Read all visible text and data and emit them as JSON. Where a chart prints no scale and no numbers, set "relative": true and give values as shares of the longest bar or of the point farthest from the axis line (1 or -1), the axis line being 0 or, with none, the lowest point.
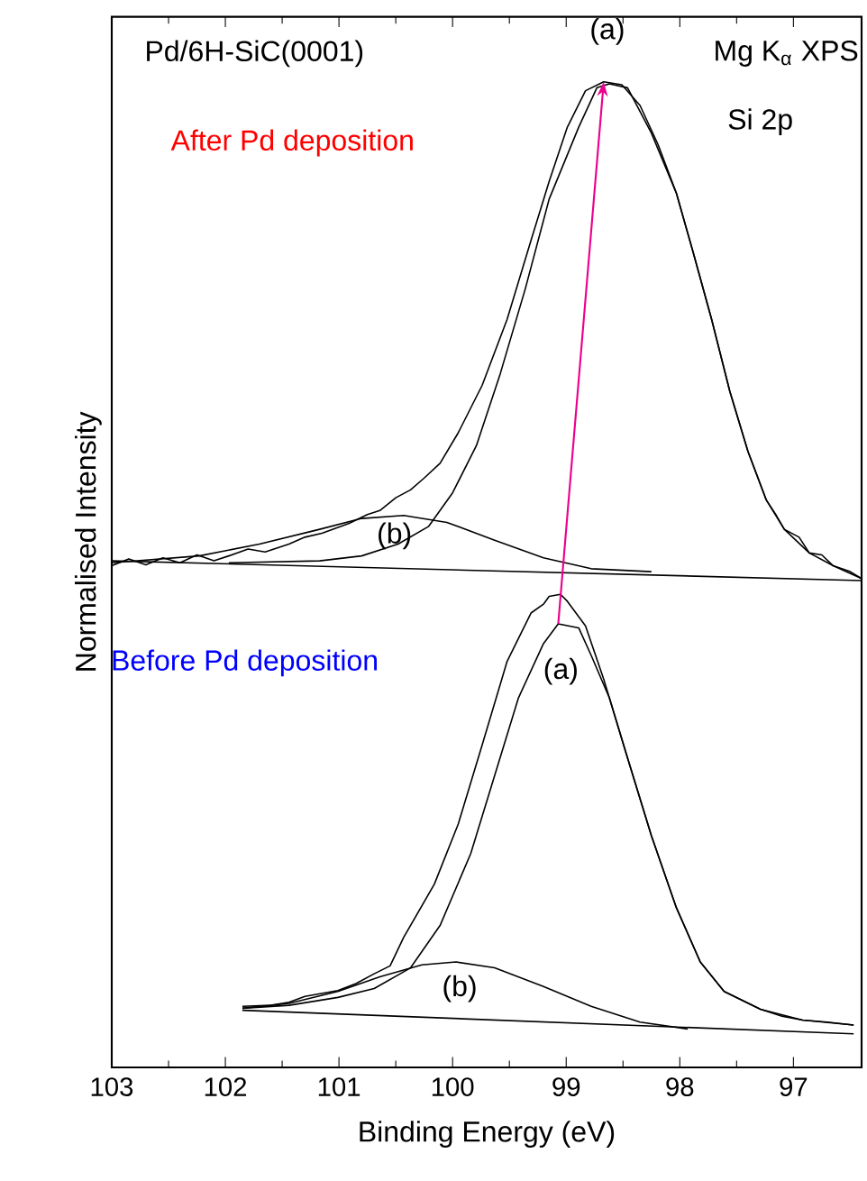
{
  "chart_data": {
    "type": "line",
    "relative": true,
    "xlabel": "Binding Energy (eV)",
    "ylabel": "Normalised Intensity",
    "xlim": [
      103,
      96.4
    ],
    "xticks": [
      103,
      102,
      101,
      100,
      99,
      98,
      97
    ],
    "annotations": [
      "Pd/6H-SiC(0001)",
      "Mg K$_{α}$ XPS",
      "Si 2p",
      "After Pd deposition",
      "Before Pd deposition",
      "(a)",
      "(b)",
      "(a)",
      "(b)"
    ],
    "series": [
      {
        "color": "#000000",
        "x": [
          103.0,
          102.85,
          102.7,
          102.55,
          102.4,
          102.25,
          102.1,
          101.97,
          101.8,
          101.65,
          101.44,
          101.3,
          101.15,
          100.91,
          100.75,
          100.64,
          100.5,
          100.37,
          100.25,
          100.11,
          99.95,
          99.74,
          99.52,
          99.31,
          99.15,
          98.99,
          98.83,
          98.67,
          98.51,
          98.35,
          98.19,
          98.03,
          97.88,
          97.72,
          97.56,
          97.4,
          97.24,
          97.15,
          97.08,
          96.95,
          96.86,
          96.75,
          96.65,
          96.5,
          96.4
        ],
        "values": [
          0.509,
          0.516,
          0.51,
          0.517,
          0.512,
          0.52,
          0.514,
          0.519,
          0.526,
          0.523,
          0.531,
          0.538,
          0.542,
          0.552,
          0.561,
          0.565,
          0.578,
          0.586,
          0.598,
          0.613,
          0.644,
          0.692,
          0.759,
          0.839,
          0.899,
          0.954,
          0.991,
          1.0,
          0.997,
          0.976,
          0.936,
          0.887,
          0.826,
          0.759,
          0.686,
          0.625,
          0.576,
          0.56,
          0.546,
          0.538,
          0.522,
          0.52,
          0.509,
          0.503,
          0.496
        ]
      },
      {
        "color": "#000000",
        "x": [
          101.97,
          101.17,
          100.8,
          100.48,
          100.21,
          100.0,
          99.79,
          99.58,
          99.36,
          99.15,
          98.89,
          98.73,
          98.62,
          98.46,
          98.25,
          98.03,
          97.88,
          97.72,
          97.56,
          97.4,
          97.24,
          97.08,
          96.86,
          96.65,
          96.4
        ],
        "values": [
          0.512,
          0.514,
          0.519,
          0.531,
          0.549,
          0.583,
          0.631,
          0.704,
          0.79,
          0.881,
          0.954,
          0.994,
          0.998,
          0.994,
          0.948,
          0.887,
          0.826,
          0.759,
          0.686,
          0.625,
          0.576,
          0.546,
          0.522,
          0.509,
          0.496
        ]
      },
      {
        "color": "#000000",
        "x": [
          103.0,
          102.23,
          101.7,
          101.17,
          100.8,
          100.43,
          100.05,
          99.63,
          99.2,
          98.78,
          98.25
        ],
        "values": [
          0.512,
          0.519,
          0.531,
          0.546,
          0.557,
          0.56,
          0.553,
          0.535,
          0.517,
          0.506,
          0.503
        ]
      },
      {
        "color": "#000000",
        "x": [
          103.0,
          96.4
        ],
        "values": [
          0.514,
          0.494
        ]
      },
      {
        "color": "#000000",
        "x": [
          101.85,
          101.6,
          101.44,
          101.3,
          101.01,
          100.85,
          100.69,
          100.55,
          100.43,
          100.16,
          99.95,
          99.74,
          99.52,
          99.31,
          99.2,
          99.15,
          99.05,
          98.99,
          98.83,
          98.67,
          98.46,
          98.25,
          98.03,
          97.82,
          97.61,
          97.29,
          97.1,
          96.92,
          96.7,
          96.47
        ],
        "values": [
          0.062,
          0.063,
          0.066,
          0.072,
          0.078,
          0.085,
          0.095,
          0.103,
          0.132,
          0.186,
          0.247,
          0.327,
          0.412,
          0.461,
          0.47,
          0.478,
          0.48,
          0.473,
          0.448,
          0.394,
          0.314,
          0.235,
          0.162,
          0.107,
          0.077,
          0.059,
          0.052,
          0.048,
          0.046,
          0.043
        ]
      },
      {
        "color": "#000000",
        "x": [
          101.85,
          101.44,
          101.01,
          100.69,
          100.37,
          100.11,
          99.84,
          99.63,
          99.42,
          99.2,
          99.07,
          98.89,
          98.78,
          98.62,
          98.46,
          98.25,
          98.03,
          97.82,
          97.61,
          97.29,
          96.92,
          96.47
        ],
        "values": [
          0.06,
          0.063,
          0.071,
          0.08,
          0.101,
          0.144,
          0.217,
          0.296,
          0.375,
          0.43,
          0.45,
          0.446,
          0.418,
          0.375,
          0.314,
          0.235,
          0.162,
          0.107,
          0.077,
          0.059,
          0.048,
          0.043
        ]
      },
      {
        "color": "#000000",
        "x": [
          101.85,
          101.44,
          101.01,
          100.64,
          100.27,
          99.97,
          99.63,
          99.2,
          98.78,
          98.35,
          97.93
        ],
        "values": [
          0.06,
          0.065,
          0.077,
          0.092,
          0.104,
          0.107,
          0.101,
          0.082,
          0.062,
          0.046,
          0.039
        ]
      },
      {
        "color": "#000000",
        "x": [
          101.85,
          96.47
        ],
        "values": [
          0.058,
          0.034
        ]
      }
    ]
  }
}
